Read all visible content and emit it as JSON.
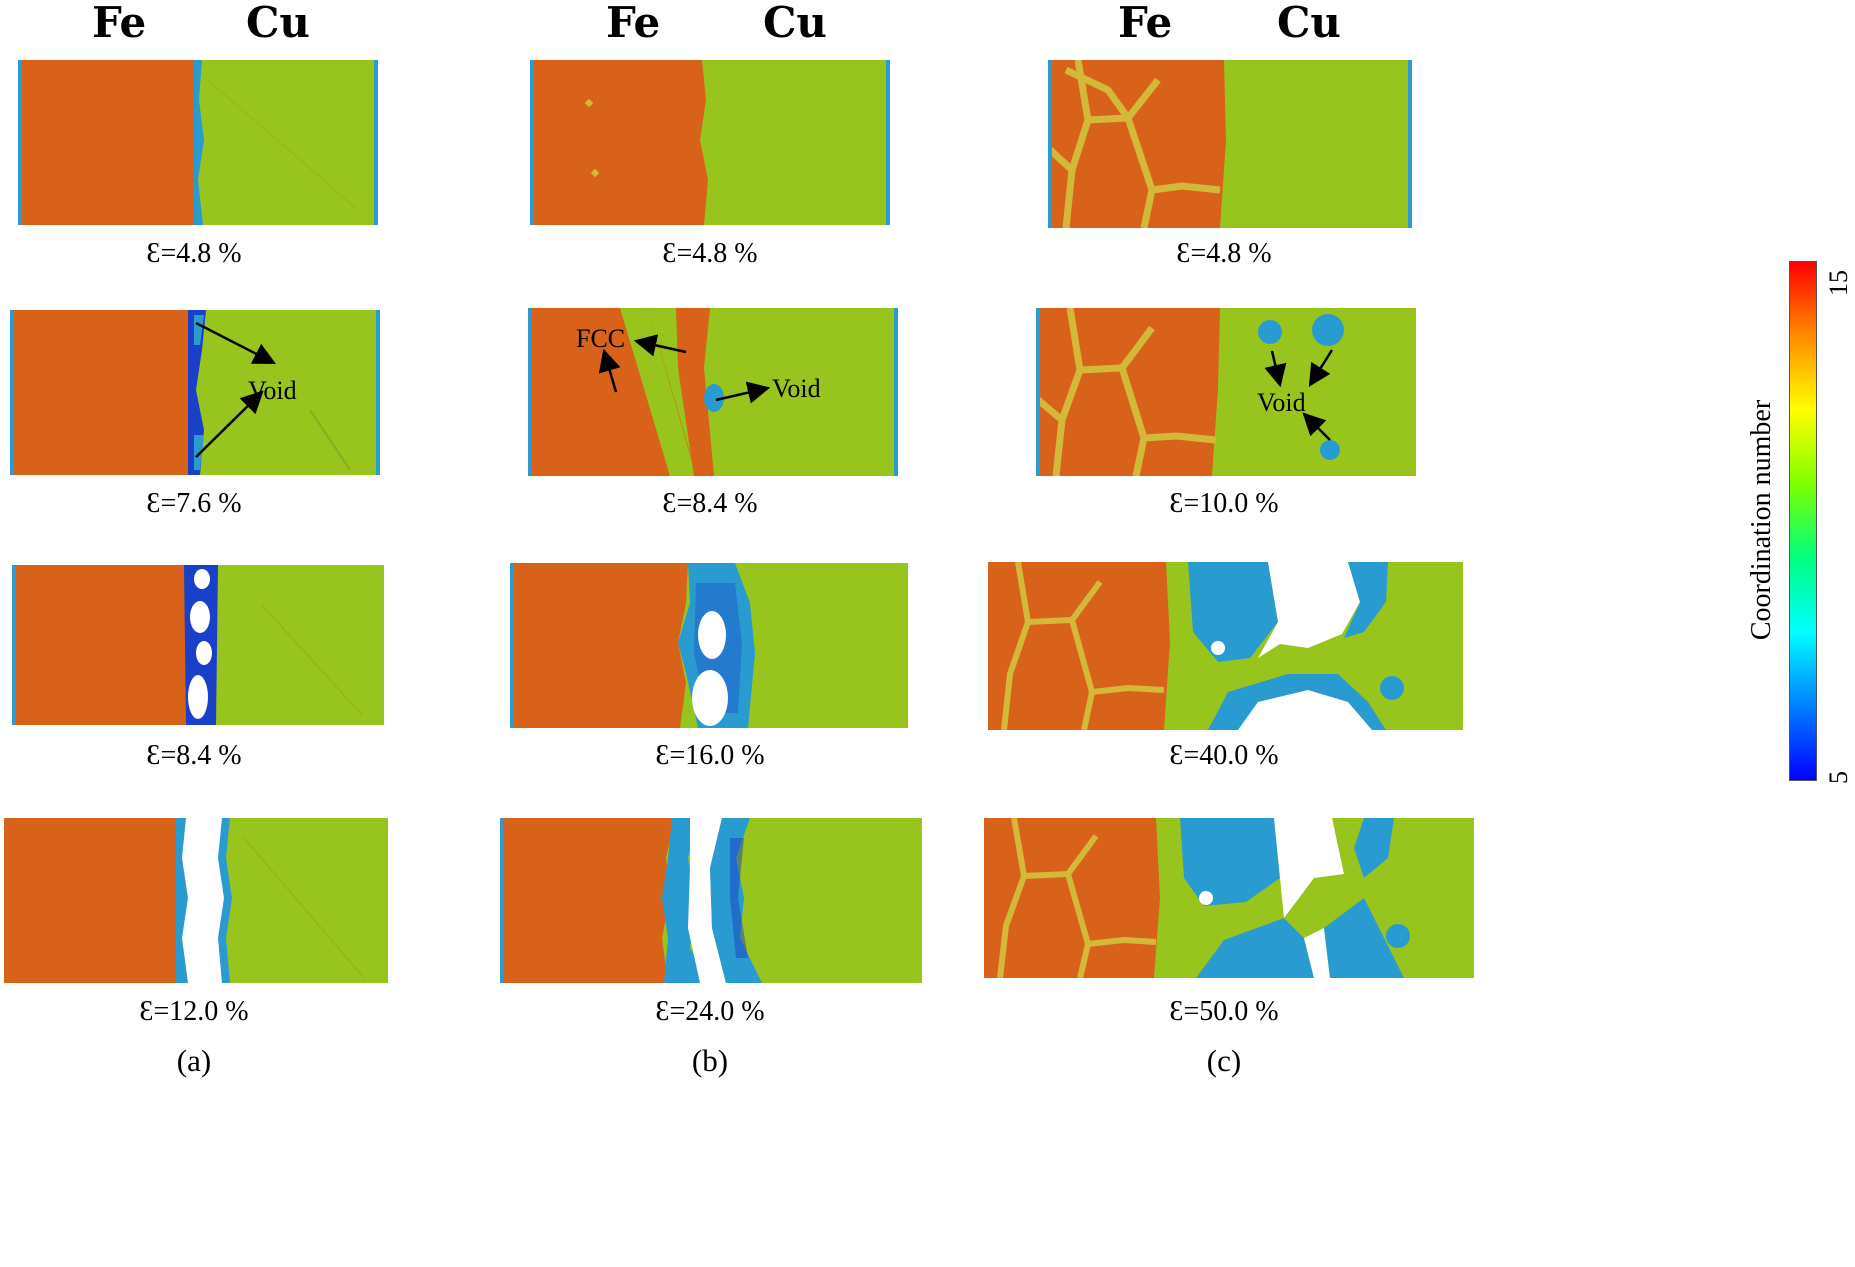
{
  "headers": {
    "fe": "Fe",
    "cu": "Cu"
  },
  "column_labels": [
    "(a)",
    "(b)",
    "(c)"
  ],
  "captions": {
    "a": [
      "Ɛ=4.8 %",
      "Ɛ=7.6 %",
      "Ɛ=8.4 %",
      "Ɛ=12.0 %"
    ],
    "b": [
      "Ɛ=4.8 %",
      "Ɛ=8.4 %",
      "Ɛ=16.0 %",
      "Ɛ=24.0 %"
    ],
    "c": [
      "Ɛ=4.8 %",
      "Ɛ=10.0 %",
      "Ɛ=40.0 %",
      "Ɛ=50.0 %"
    ]
  },
  "annotations": {
    "void": "Void",
    "fcc": "FCC"
  },
  "colorbar": {
    "title": "Coordination number",
    "max_label": "15",
    "min_label": "5",
    "colors": [
      "#ff0000",
      "#ff8c00",
      "#ffff00",
      "#7fff00",
      "#00ff7f",
      "#00ffff",
      "#0080ff",
      "#0000ff"
    ]
  },
  "colors": {
    "fe": "#d8621a",
    "cu": "#98c41e",
    "void_edge": "#2a9bd0",
    "void_core": "#1a3fc8",
    "boundary": "#d4b83a"
  }
}
